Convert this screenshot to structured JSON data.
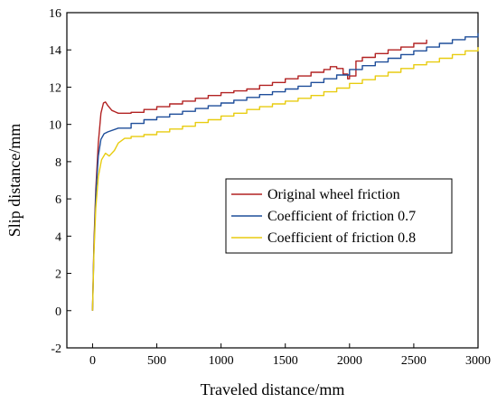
{
  "chart_data": {
    "type": "line",
    "title": "",
    "xlabel": "Traveled distance/mm",
    "ylabel": "Slip distance/mm",
    "xlim": [
      -200,
      3000
    ],
    "ylim": [
      -2,
      16
    ],
    "x_ticks": [
      0,
      500,
      1000,
      1500,
      2000,
      2500,
      3000
    ],
    "y_ticks": [
      -2,
      0,
      2,
      4,
      6,
      8,
      10,
      12,
      14,
      16
    ],
    "grid": false,
    "legend_position": "center-right",
    "series": [
      {
        "name": "Original wheel friction",
        "color": "#b22222",
        "points": [
          [
            0,
            0
          ],
          [
            10,
            3.5
          ],
          [
            25,
            6.5
          ],
          [
            45,
            9
          ],
          [
            65,
            10.6
          ],
          [
            85,
            11.15
          ],
          [
            100,
            11.2
          ],
          [
            120,
            11.0
          ],
          [
            150,
            10.75
          ],
          [
            200,
            10.6
          ],
          [
            250,
            10.6
          ],
          [
            300,
            10.65
          ],
          [
            400,
            10.8
          ],
          [
            500,
            10.95
          ],
          [
            600,
            11.1
          ],
          [
            700,
            11.25
          ],
          [
            800,
            11.4
          ],
          [
            900,
            11.55
          ],
          [
            1000,
            11.7
          ],
          [
            1100,
            11.8
          ],
          [
            1200,
            11.9
          ],
          [
            1300,
            12.1
          ],
          [
            1400,
            12.25
          ],
          [
            1500,
            12.45
          ],
          [
            1600,
            12.6
          ],
          [
            1700,
            12.8
          ],
          [
            1800,
            12.95
          ],
          [
            1850,
            13.1
          ],
          [
            1900,
            13.0
          ],
          [
            1950,
            12.7
          ],
          [
            1985,
            12.45
          ],
          [
            2000,
            12.6
          ],
          [
            2050,
            13.4
          ],
          [
            2100,
            13.6
          ],
          [
            2200,
            13.8
          ],
          [
            2300,
            14.0
          ],
          [
            2400,
            14.15
          ],
          [
            2500,
            14.35
          ],
          [
            2600,
            14.55
          ]
        ]
      },
      {
        "name": "Coefficient of friction 0.7",
        "color": "#1f4e9a",
        "points": [
          [
            0,
            0
          ],
          [
            10,
            3.2
          ],
          [
            25,
            6.2
          ],
          [
            45,
            8.3
          ],
          [
            65,
            9.2
          ],
          [
            90,
            9.5
          ],
          [
            120,
            9.6
          ],
          [
            200,
            9.8
          ],
          [
            300,
            10.05
          ],
          [
            400,
            10.25
          ],
          [
            500,
            10.4
          ],
          [
            600,
            10.55
          ],
          [
            700,
            10.7
          ],
          [
            800,
            10.85
          ],
          [
            900,
            11.0
          ],
          [
            1000,
            11.15
          ],
          [
            1100,
            11.3
          ],
          [
            1200,
            11.45
          ],
          [
            1300,
            11.6
          ],
          [
            1400,
            11.75
          ],
          [
            1500,
            11.9
          ],
          [
            1600,
            12.05
          ],
          [
            1700,
            12.25
          ],
          [
            1800,
            12.45
          ],
          [
            1900,
            12.65
          ],
          [
            2000,
            12.95
          ],
          [
            2100,
            13.15
          ],
          [
            2200,
            13.35
          ],
          [
            2300,
            13.55
          ],
          [
            2400,
            13.75
          ],
          [
            2500,
            13.95
          ],
          [
            2600,
            14.15
          ],
          [
            2700,
            14.35
          ],
          [
            2800,
            14.55
          ],
          [
            2900,
            14.7
          ],
          [
            3000,
            14.9
          ]
        ]
      },
      {
        "name": "Coefficient of friction 0.8",
        "color": "#e8cc10",
        "points": [
          [
            0,
            0
          ],
          [
            10,
            3.0
          ],
          [
            25,
            5.5
          ],
          [
            45,
            7.2
          ],
          [
            70,
            8.1
          ],
          [
            100,
            8.45
          ],
          [
            130,
            8.3
          ],
          [
            170,
            8.6
          ],
          [
            200,
            9.0
          ],
          [
            250,
            9.25
          ],
          [
            300,
            9.35
          ],
          [
            400,
            9.45
          ],
          [
            500,
            9.6
          ],
          [
            600,
            9.75
          ],
          [
            700,
            9.9
          ],
          [
            800,
            10.1
          ],
          [
            900,
            10.25
          ],
          [
            1000,
            10.45
          ],
          [
            1100,
            10.6
          ],
          [
            1200,
            10.8
          ],
          [
            1300,
            10.95
          ],
          [
            1400,
            11.1
          ],
          [
            1500,
            11.25
          ],
          [
            1600,
            11.4
          ],
          [
            1700,
            11.55
          ],
          [
            1800,
            11.75
          ],
          [
            1900,
            11.95
          ],
          [
            2000,
            12.2
          ],
          [
            2100,
            12.4
          ],
          [
            2200,
            12.6
          ],
          [
            2300,
            12.8
          ],
          [
            2400,
            13.0
          ],
          [
            2500,
            13.2
          ],
          [
            2600,
            13.35
          ],
          [
            2700,
            13.55
          ],
          [
            2800,
            13.75
          ],
          [
            2900,
            13.95
          ],
          [
            3000,
            14.15
          ]
        ]
      }
    ]
  }
}
